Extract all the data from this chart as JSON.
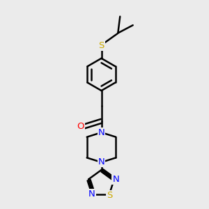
{
  "bg_color": "#ebebeb",
  "bond_color": "#000000",
  "N_color": "#0000ff",
  "O_color": "#ff0000",
  "S_color": "#ccaa00",
  "line_width": 1.8,
  "font_size": 9.5,
  "fig_w": 3.0,
  "fig_h": 3.0,
  "dpi": 100,
  "xlim": [
    0,
    10
  ],
  "ylim": [
    0,
    10
  ]
}
